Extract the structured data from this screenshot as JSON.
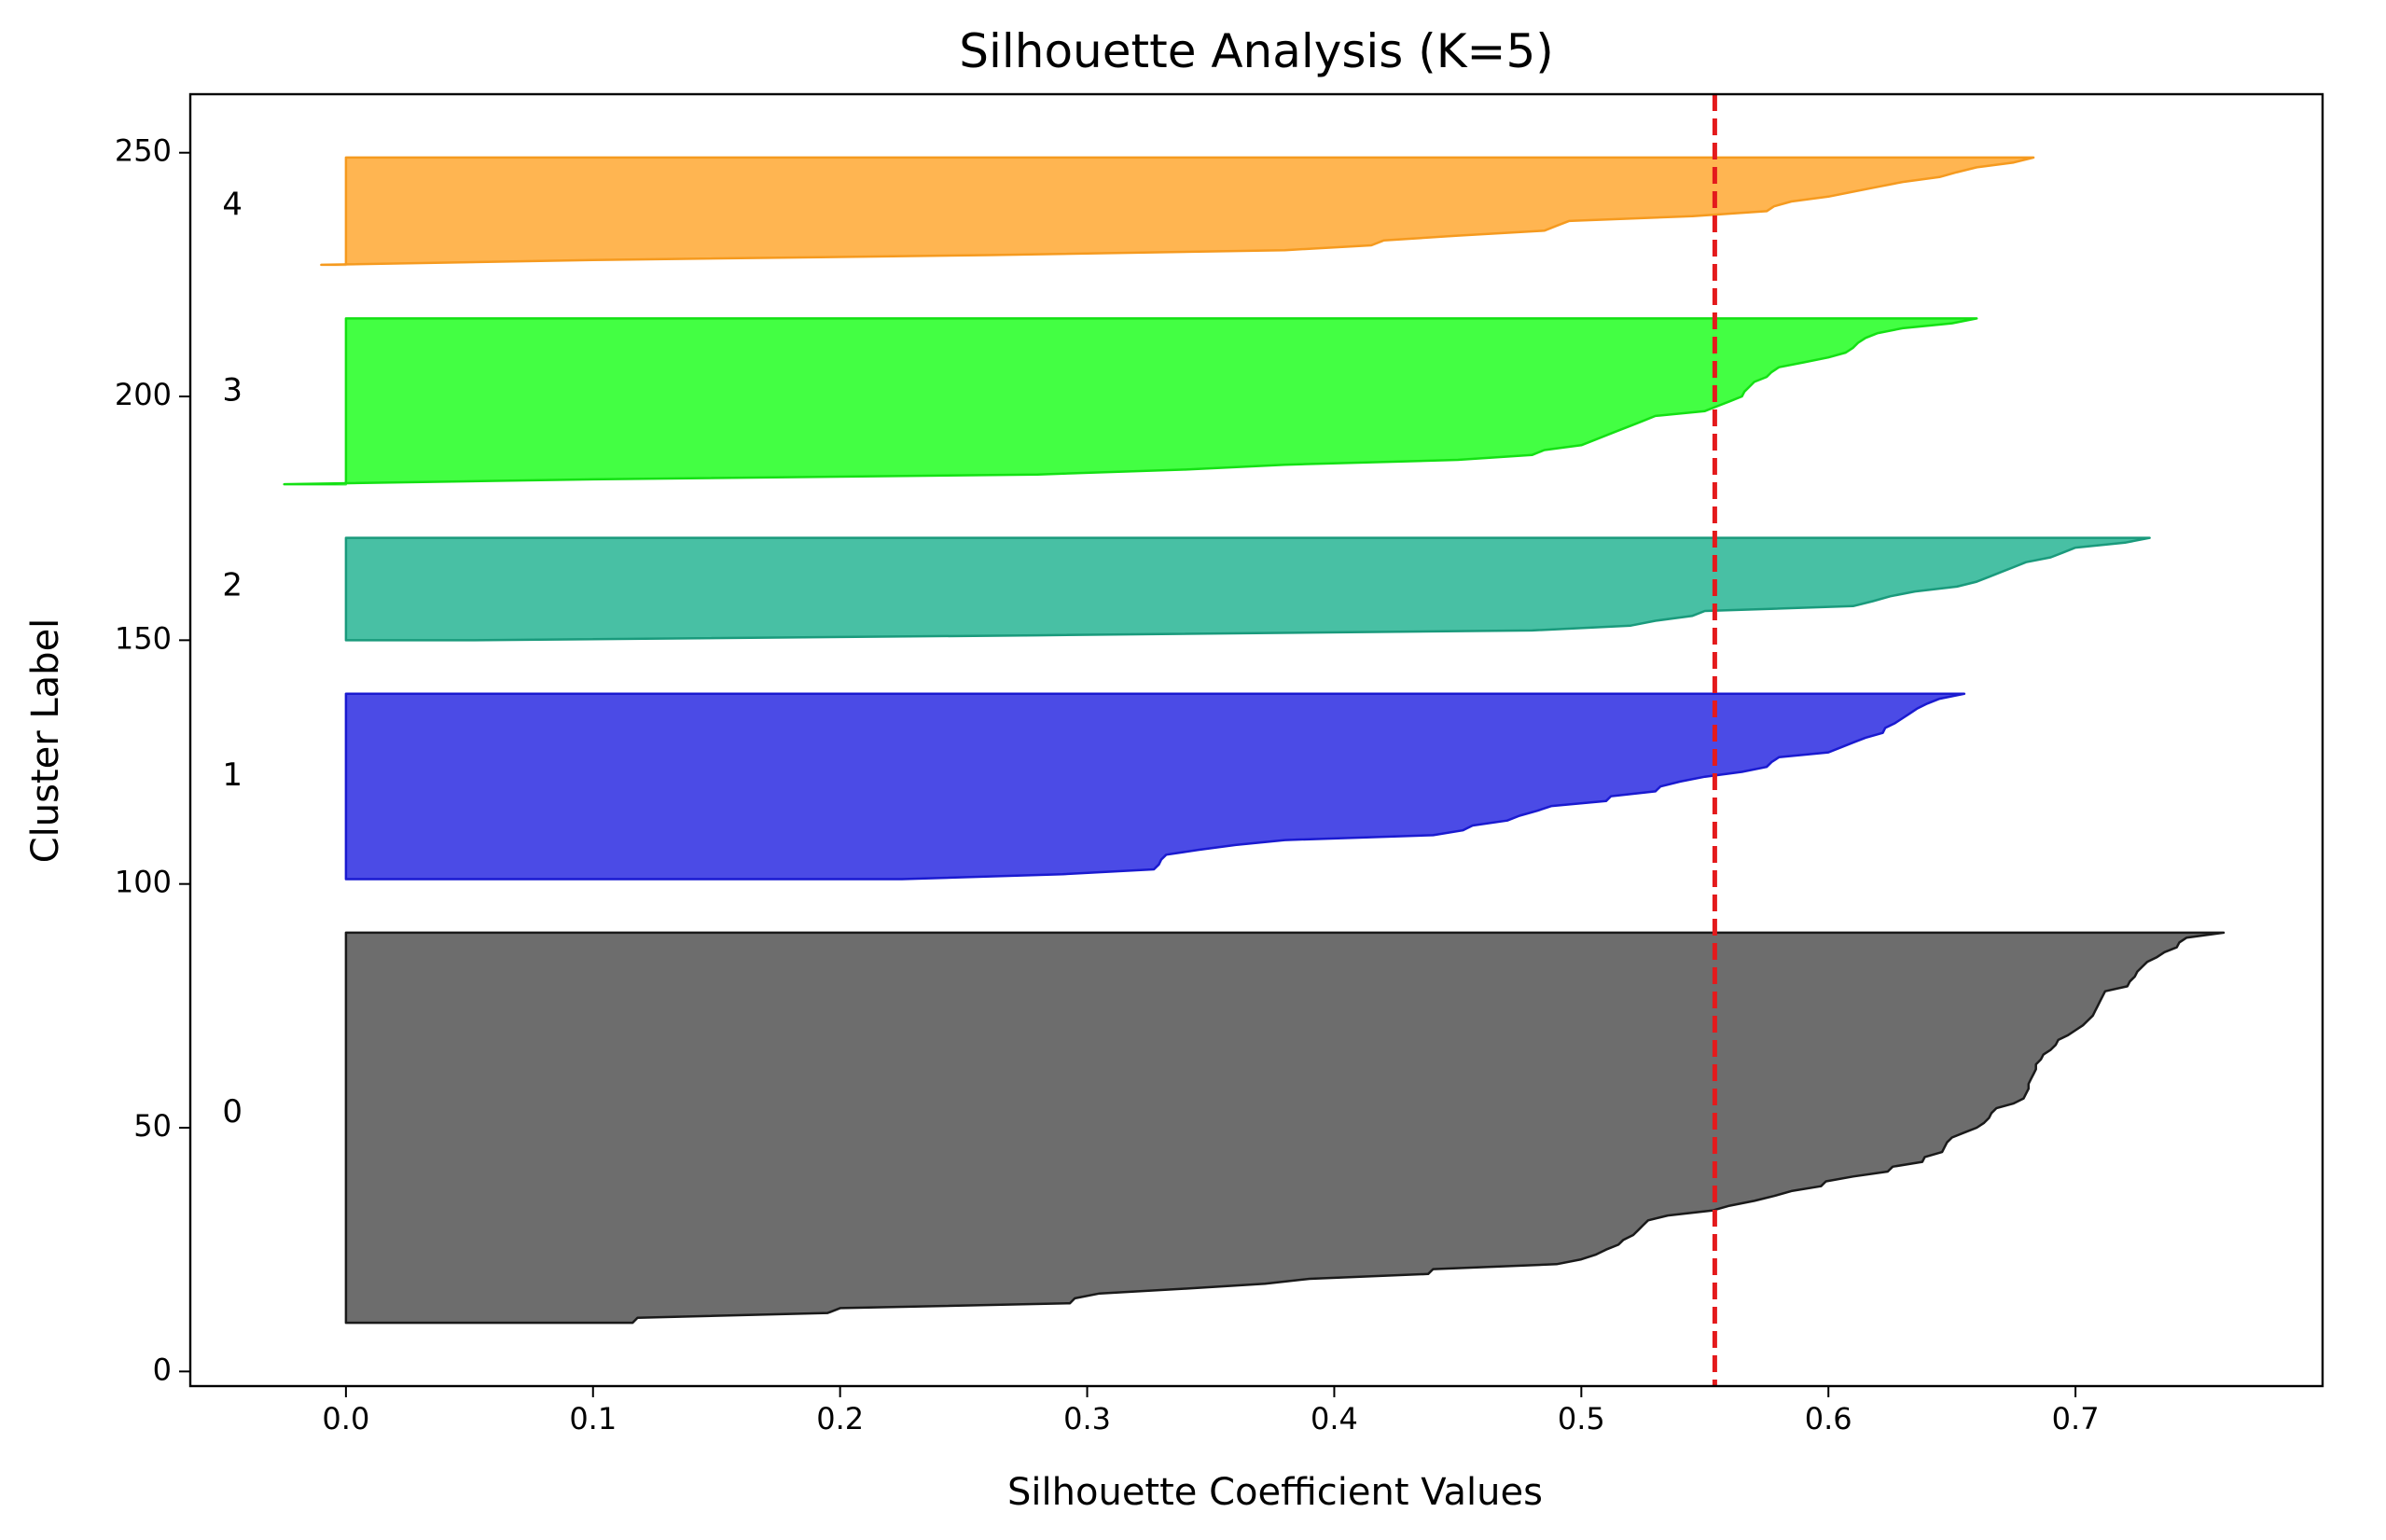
{
  "chart_data": {
    "type": "area",
    "title": "Silhouette Analysis (K=5)",
    "xlabel": "Silhouette Coefficient Values",
    "ylabel": "Cluster Label",
    "xlim": [
      -0.063,
      0.8
    ],
    "ylim": [
      -3,
      262
    ],
    "xticks": [
      0.0,
      0.1,
      0.2,
      0.3,
      0.4,
      0.5,
      0.6,
      0.7
    ],
    "xtick_labels": [
      "0.0",
      "0.1",
      "0.2",
      "0.3",
      "0.4",
      "0.5",
      "0.6",
      "0.7"
    ],
    "yticks": [
      0,
      50,
      100,
      150,
      200,
      250
    ],
    "ytick_labels": [
      "0",
      "50",
      "100",
      "150",
      "200",
      "250"
    ],
    "grid": false,
    "average_silhouette": 0.554,
    "average_line_color": "#e41a1c",
    "series": [
      {
        "label": "0",
        "color": "#4d4d4d",
        "edge_color": "#1a1a1a",
        "label_y": 53,
        "y_start": 10,
        "y_end": 90,
        "profile": [
          [
            10,
            0.116
          ],
          [
            11,
            0.118
          ],
          [
            12,
            0.195
          ],
          [
            13,
            0.2
          ],
          [
            14,
            0.293
          ],
          [
            15,
            0.295
          ],
          [
            16,
            0.305
          ],
          [
            17,
            0.34
          ],
          [
            18,
            0.372
          ],
          [
            19,
            0.39
          ],
          [
            20,
            0.438
          ],
          [
            21,
            0.44
          ],
          [
            22,
            0.49
          ],
          [
            23,
            0.5
          ],
          [
            24,
            0.506
          ],
          [
            25,
            0.51
          ],
          [
            26,
            0.515
          ],
          [
            27,
            0.517
          ],
          [
            28,
            0.521
          ],
          [
            29,
            0.523
          ],
          [
            30,
            0.525
          ],
          [
            31,
            0.527
          ],
          [
            32,
            0.535
          ],
          [
            33,
            0.553
          ],
          [
            34,
            0.56
          ],
          [
            35,
            0.57
          ],
          [
            36,
            0.578
          ],
          [
            37,
            0.585
          ],
          [
            38,
            0.597
          ],
          [
            39,
            0.599
          ],
          [
            40,
            0.61
          ],
          [
            41,
            0.624
          ],
          [
            42,
            0.626
          ],
          [
            43,
            0.638
          ],
          [
            44,
            0.639
          ],
          [
            45,
            0.646
          ],
          [
            46,
            0.647
          ],
          [
            47,
            0.648
          ],
          [
            48,
            0.65
          ],
          [
            49,
            0.655
          ],
          [
            50,
            0.66
          ],
          [
            51,
            0.663
          ],
          [
            52,
            0.665
          ],
          [
            53,
            0.666
          ],
          [
            54,
            0.668
          ],
          [
            55,
            0.675
          ],
          [
            56,
            0.679
          ],
          [
            57,
            0.68
          ],
          [
            58,
            0.681
          ],
          [
            59,
            0.681
          ],
          [
            60,
            0.682
          ],
          [
            61,
            0.683
          ],
          [
            62,
            0.684
          ],
          [
            63,
            0.684
          ],
          [
            64,
            0.686
          ],
          [
            65,
            0.687
          ],
          [
            66,
            0.69
          ],
          [
            67,
            0.692
          ],
          [
            68,
            0.693
          ],
          [
            69,
            0.697
          ],
          [
            70,
            0.7
          ],
          [
            71,
            0.703
          ],
          [
            72,
            0.705
          ],
          [
            73,
            0.707
          ],
          [
            74,
            0.708
          ],
          [
            75,
            0.709
          ],
          [
            76,
            0.71
          ],
          [
            77,
            0.711
          ],
          [
            78,
            0.712
          ],
          [
            79,
            0.721
          ],
          [
            80,
            0.722
          ],
          [
            81,
            0.724
          ],
          [
            82,
            0.725
          ],
          [
            83,
            0.727
          ],
          [
            84,
            0.729
          ],
          [
            85,
            0.733
          ],
          [
            86,
            0.736
          ],
          [
            87,
            0.741
          ],
          [
            88,
            0.742
          ],
          [
            89,
            0.745
          ],
          [
            90,
            0.76
          ]
        ]
      },
      {
        "label": "1",
        "color": "#2323e0",
        "edge_color": "#1a1ad0",
        "label_y": 122,
        "y_start": 101,
        "y_end": 139,
        "profile": [
          [
            101,
            0.225
          ],
          [
            102,
            0.29
          ],
          [
            103,
            0.327
          ],
          [
            104,
            0.329
          ],
          [
            105,
            0.33
          ],
          [
            106,
            0.332
          ],
          [
            107,
            0.345
          ],
          [
            108,
            0.36
          ],
          [
            109,
            0.38
          ],
          [
            110,
            0.44
          ],
          [
            111,
            0.452
          ],
          [
            112,
            0.456
          ],
          [
            113,
            0.47
          ],
          [
            114,
            0.475
          ],
          [
            115,
            0.482
          ],
          [
            116,
            0.488
          ],
          [
            117,
            0.51
          ],
          [
            118,
            0.512
          ],
          [
            119,
            0.53
          ],
          [
            120,
            0.532
          ],
          [
            121,
            0.54
          ],
          [
            122,
            0.55
          ],
          [
            123,
            0.565
          ],
          [
            124,
            0.575
          ],
          [
            125,
            0.577
          ],
          [
            126,
            0.58
          ],
          [
            127,
            0.6
          ],
          [
            128,
            0.605
          ],
          [
            129,
            0.61
          ],
          [
            130,
            0.615
          ],
          [
            131,
            0.622
          ],
          [
            132,
            0.623
          ],
          [
            133,
            0.627
          ],
          [
            134,
            0.63
          ],
          [
            135,
            0.633
          ],
          [
            136,
            0.636
          ],
          [
            137,
            0.64
          ],
          [
            138,
            0.645
          ],
          [
            139,
            0.655
          ]
        ]
      },
      {
        "label": "2",
        "color": "#20b290",
        "edge_color": "#1a9a7c",
        "label_y": 161,
        "y_start": 150,
        "y_end": 171,
        "profile": [
          [
            150,
            0.05
          ],
          [
            151,
            0.28
          ],
          [
            152,
            0.48
          ],
          [
            153,
            0.52
          ],
          [
            154,
            0.53
          ],
          [
            155,
            0.545
          ],
          [
            156,
            0.55
          ],
          [
            157,
            0.61
          ],
          [
            158,
            0.618
          ],
          [
            159,
            0.625
          ],
          [
            160,
            0.635
          ],
          [
            161,
            0.652
          ],
          [
            162,
            0.66
          ],
          [
            163,
            0.665
          ],
          [
            164,
            0.67
          ],
          [
            165,
            0.675
          ],
          [
            166,
            0.68
          ],
          [
            167,
            0.69
          ],
          [
            168,
            0.695
          ],
          [
            169,
            0.7
          ],
          [
            170,
            0.72
          ],
          [
            171,
            0.73
          ]
        ]
      },
      {
        "label": "3",
        "color": "#1aff1a",
        "edge_color": "#14e014",
        "label_y": 201,
        "y_start": 182,
        "y_end": 216,
        "profile": [
          [
            182,
            -0.025
          ],
          [
            183,
            0.1
          ],
          [
            184,
            0.28
          ],
          [
            185,
            0.34
          ],
          [
            186,
            0.38
          ],
          [
            187,
            0.45
          ],
          [
            188,
            0.48
          ],
          [
            189,
            0.485
          ],
          [
            190,
            0.5
          ],
          [
            191,
            0.505
          ],
          [
            192,
            0.51
          ],
          [
            193,
            0.515
          ],
          [
            194,
            0.52
          ],
          [
            195,
            0.525
          ],
          [
            196,
            0.53
          ],
          [
            197,
            0.55
          ],
          [
            198,
            0.555
          ],
          [
            199,
            0.56
          ],
          [
            200,
            0.565
          ],
          [
            201,
            0.566
          ],
          [
            202,
            0.568
          ],
          [
            203,
            0.57
          ],
          [
            204,
            0.575
          ],
          [
            205,
            0.577
          ],
          [
            206,
            0.58
          ],
          [
            207,
            0.59
          ],
          [
            208,
            0.6
          ],
          [
            209,
            0.607
          ],
          [
            210,
            0.61
          ],
          [
            211,
            0.612
          ],
          [
            212,
            0.615
          ],
          [
            213,
            0.62
          ],
          [
            214,
            0.63
          ],
          [
            215,
            0.65
          ],
          [
            216,
            0.66
          ]
        ]
      },
      {
        "label": "4",
        "color": "#ffa52b",
        "edge_color": "#f59a1f",
        "label_y": 239,
        "y_start": 227,
        "y_end": 249,
        "profile": [
          [
            227,
            -0.01
          ],
          [
            228,
            0.1
          ],
          [
            229,
            0.26
          ],
          [
            230,
            0.38
          ],
          [
            231,
            0.415
          ],
          [
            232,
            0.42
          ],
          [
            233,
            0.45
          ],
          [
            234,
            0.485
          ],
          [
            235,
            0.49
          ],
          [
            236,
            0.495
          ],
          [
            237,
            0.545
          ],
          [
            238,
            0.575
          ],
          [
            239,
            0.578
          ],
          [
            240,
            0.585
          ],
          [
            241,
            0.6
          ],
          [
            242,
            0.61
          ],
          [
            243,
            0.62
          ],
          [
            244,
            0.63
          ],
          [
            245,
            0.645
          ],
          [
            246,
            0.652
          ],
          [
            247,
            0.66
          ],
          [
            248,
            0.675
          ],
          [
            249,
            0.683
          ]
        ]
      }
    ]
  }
}
